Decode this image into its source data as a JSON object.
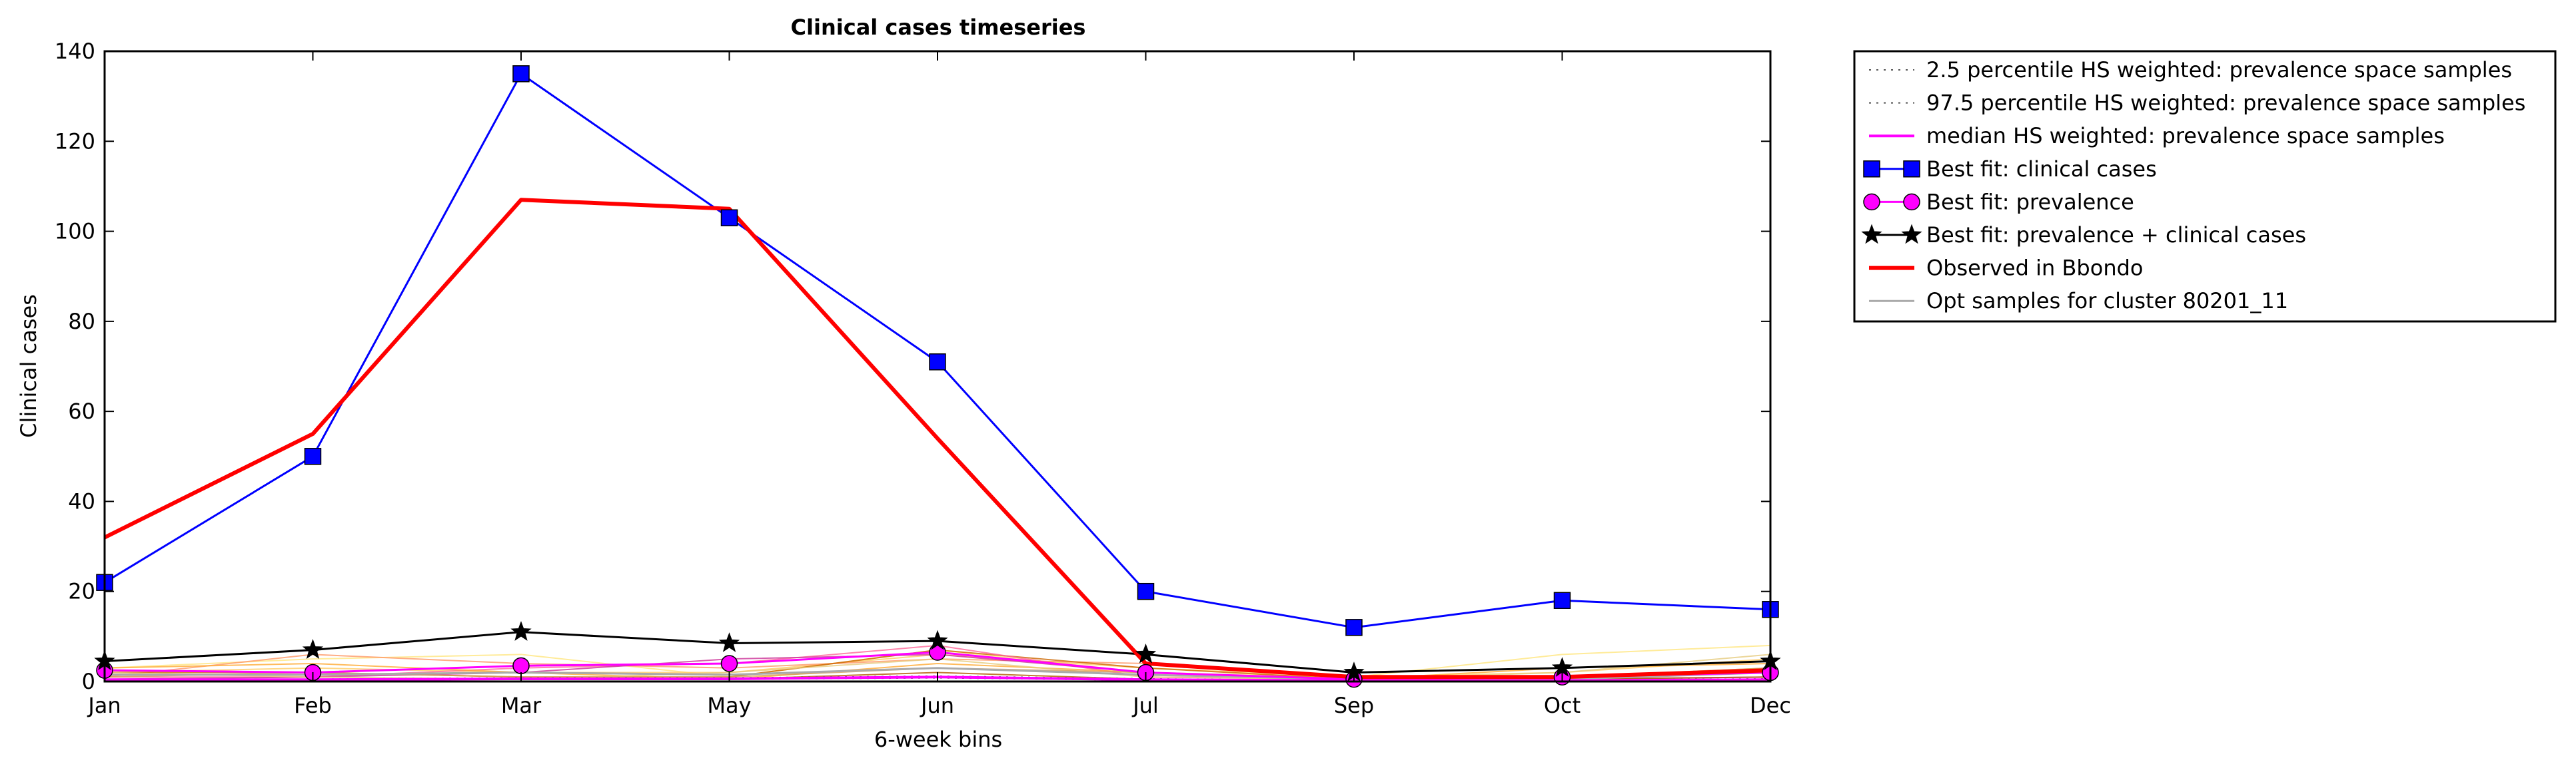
{
  "chart_data": {
    "type": "line",
    "title": "Clinical cases timeseries",
    "xlabel": "6-week bins",
    "ylabel": "Clinical cases",
    "ylim": [
      0,
      140
    ],
    "yticks": [
      0,
      20,
      40,
      60,
      80,
      100,
      120,
      140
    ],
    "categories": [
      "Jan",
      "Feb",
      "Mar",
      "May",
      "Jun",
      "Jul",
      "Sep",
      "Oct",
      "Dec"
    ],
    "grid": false,
    "legend_position": "outside right, top",
    "series": [
      {
        "name": "2.5 percentile HS weighted: prevalence space samples",
        "style": "dotted",
        "color": "#555555",
        "values": [
          0.3,
          0.3,
          0.5,
          0.5,
          0.8,
          0.3,
          0.1,
          0.2,
          0.3
        ]
      },
      {
        "name": "97.5 percentile HS weighted: prevalence space samples",
        "style": "dotted",
        "color": "#555555",
        "values": [
          0.5,
          0.5,
          0.8,
          0.8,
          1.2,
          0.6,
          0.2,
          0.3,
          0.6
        ]
      },
      {
        "name": "median HS weighted: prevalence space samples",
        "style": "solid",
        "color": "#ff00ff",
        "values": [
          0.4,
          0.4,
          0.6,
          0.6,
          1.0,
          0.4,
          0.2,
          0.2,
          0.4
        ]
      },
      {
        "name": "Best fit: clinical cases",
        "style": "solid",
        "marker": "square",
        "color": "#0000ff",
        "values": [
          22,
          50,
          135,
          103,
          71,
          20,
          12,
          18,
          16
        ]
      },
      {
        "name": "Best fit: prevalence",
        "style": "solid",
        "marker": "circle",
        "color": "#ff00ff",
        "values": [
          2.5,
          2,
          3.5,
          4,
          6.5,
          2,
          0.5,
          1,
          2
        ]
      },
      {
        "name": "Best fit: prevalence + clinical cases",
        "style": "solid",
        "marker": "star",
        "color": "#000000",
        "values": [
          4.5,
          7,
          11,
          8.5,
          9,
          6,
          2,
          3,
          4.5
        ]
      },
      {
        "name": "Observed in Bbondo",
        "style": "solid",
        "color": "#ff0000",
        "values": [
          32,
          55,
          107,
          105,
          54,
          4,
          1,
          1,
          2.5
        ]
      },
      {
        "name": "Opt samples for cluster 80201_11",
        "style": "solid",
        "color": "#aaaaaa",
        "values": [
          1.5,
          1.5,
          2,
          1.5,
          3,
          1.5,
          0.5,
          0.5,
          2
        ]
      }
    ],
    "opt_sample_lines": {
      "colors": [
        "#ffe680",
        "#ffcc66",
        "#ff9966",
        "#cc6600",
        "#ff6699",
        "#cc3399",
        "#ffaa33",
        "#e6cc80",
        "#d4a060",
        "#b35900"
      ],
      "values": [
        [
          3,
          5,
          6,
          1,
          7,
          2,
          1,
          6,
          8
        ],
        [
          2,
          3,
          2,
          2,
          6,
          3,
          1,
          2,
          5
        ],
        [
          1,
          6,
          4,
          3,
          5,
          4,
          1,
          1,
          3
        ],
        [
          2,
          2,
          1,
          1,
          7,
          3,
          0.5,
          0.5,
          3
        ],
        [
          1,
          1,
          3,
          4,
          8,
          1,
          0.5,
          1,
          2
        ],
        [
          0.5,
          1,
          2,
          5,
          6,
          2,
          0.5,
          0.5,
          1
        ],
        [
          3,
          4,
          2,
          0.5,
          4,
          2,
          0.5,
          3,
          4
        ],
        [
          2,
          1,
          0.5,
          2,
          5,
          1,
          0.5,
          2,
          6
        ],
        [
          1,
          2,
          1,
          1,
          3,
          2,
          0.5,
          1,
          3
        ],
        [
          0.5,
          0.5,
          0.5,
          0.5,
          2,
          0.5,
          0.2,
          0.5,
          1
        ]
      ]
    }
  }
}
